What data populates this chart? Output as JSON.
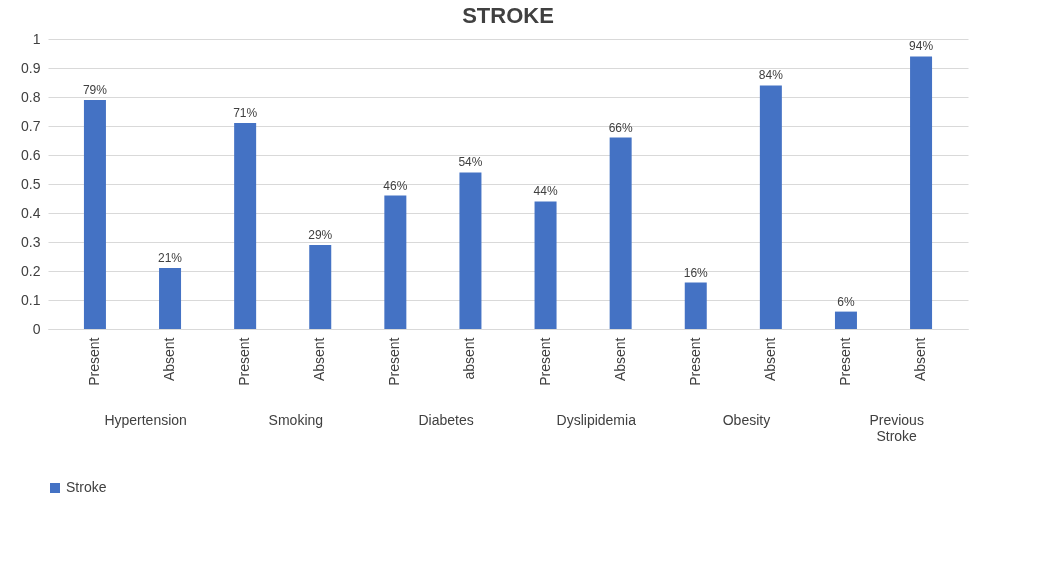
{
  "chart_data": {
    "type": "bar",
    "title": "STROKE",
    "categories": [
      "Present",
      "Absent",
      "Present",
      "Absent",
      "Present",
      "absent",
      "Present",
      "Absent",
      "Present",
      "Absent",
      "Present",
      "Absent"
    ],
    "series": [
      {
        "name": "Stroke",
        "color": "#4472c4",
        "values": [
          0.79,
          0.21,
          0.71,
          0.29,
          0.46,
          0.54,
          0.44,
          0.66,
          0.16,
          0.84,
          0.06,
          0.94
        ],
        "value_labels": [
          "79%",
          "21%",
          "71%",
          "29%",
          "46%",
          "54%",
          "44%",
          "66%",
          "16%",
          "84%",
          "6%",
          "94%"
        ]
      }
    ],
    "annotations": [
      "Hypertension",
      "Smoking",
      "Diabetes",
      "Dyslipidemia",
      "Obesity",
      "Previous Stroke"
    ],
    "ylim": [
      0,
      1
    ],
    "yticks": [
      0,
      0.1,
      0.2,
      0.3,
      0.4,
      0.5,
      0.6,
      0.7,
      0.8,
      0.9,
      1
    ],
    "grid": "y",
    "legend": "bottom"
  }
}
